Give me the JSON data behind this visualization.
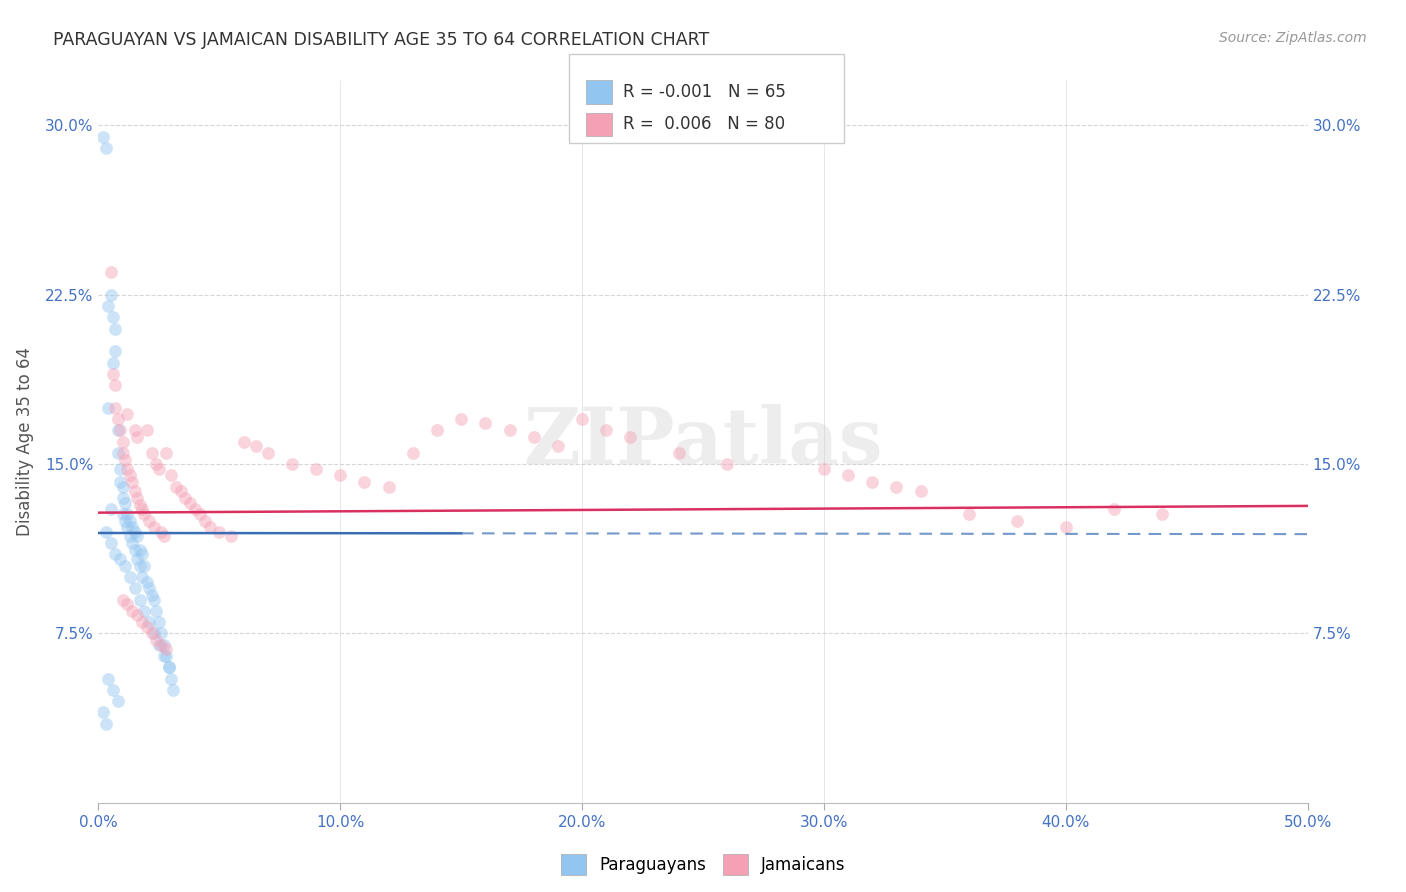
{
  "title": "PARAGUAYAN VS JAMAICAN DISABILITY AGE 35 TO 64 CORRELATION CHART",
  "source": "Source: ZipAtlas.com",
  "xlim": [
    0.0,
    0.5
  ],
  "ylim": [
    0.0,
    0.32
  ],
  "xlabel_ticks": [
    "0.0%",
    "10.0%",
    "20.0%",
    "30.0%",
    "40.0%",
    "50.0%"
  ],
  "xlabel_vals": [
    0.0,
    0.1,
    0.2,
    0.3,
    0.4,
    0.5
  ],
  "ylabel_ticks": [
    "7.5%",
    "15.0%",
    "22.5%",
    "30.0%"
  ],
  "ylabel_vals": [
    0.075,
    0.15,
    0.225,
    0.3
  ],
  "paraguayan_color": "#92C5F0",
  "jamaican_color": "#F4A0B5",
  "trend_paraguayan_color": "#3B6DB5",
  "trend_jamaican_color": "#D93060",
  "legend_r_paraguayan": "R = -0.001",
  "legend_n_paraguayan": "N = 65",
  "legend_r_jamaican": "R =  0.006",
  "legend_n_jamaican": "N = 80",
  "paraguayan_x": [
    0.002,
    0.003,
    0.004,
    0.004,
    0.005,
    0.005,
    0.006,
    0.006,
    0.007,
    0.007,
    0.008,
    0.008,
    0.009,
    0.009,
    0.01,
    0.01,
    0.01,
    0.011,
    0.011,
    0.012,
    0.012,
    0.013,
    0.013,
    0.014,
    0.014,
    0.015,
    0.015,
    0.016,
    0.016,
    0.017,
    0.017,
    0.018,
    0.018,
    0.019,
    0.02,
    0.021,
    0.022,
    0.023,
    0.024,
    0.025,
    0.026,
    0.027,
    0.028,
    0.029,
    0.03,
    0.031,
    0.003,
    0.005,
    0.007,
    0.009,
    0.011,
    0.013,
    0.015,
    0.017,
    0.019,
    0.021,
    0.023,
    0.025,
    0.027,
    0.029,
    0.004,
    0.006,
    0.008,
    0.002,
    0.003
  ],
  "paraguayan_y": [
    0.295,
    0.29,
    0.175,
    0.22,
    0.13,
    0.225,
    0.215,
    0.195,
    0.21,
    0.2,
    0.165,
    0.155,
    0.148,
    0.142,
    0.14,
    0.135,
    0.128,
    0.133,
    0.125,
    0.128,
    0.122,
    0.125,
    0.118,
    0.122,
    0.115,
    0.12,
    0.112,
    0.118,
    0.108,
    0.112,
    0.105,
    0.11,
    0.1,
    0.105,
    0.098,
    0.095,
    0.092,
    0.09,
    0.085,
    0.08,
    0.075,
    0.07,
    0.065,
    0.06,
    0.055,
    0.05,
    0.12,
    0.115,
    0.11,
    0.108,
    0.105,
    0.1,
    0.095,
    0.09,
    0.085,
    0.08,
    0.075,
    0.07,
    0.065,
    0.06,
    0.055,
    0.05,
    0.045,
    0.04,
    0.035
  ],
  "jamaican_x": [
    0.005,
    0.006,
    0.007,
    0.007,
    0.008,
    0.009,
    0.01,
    0.01,
    0.011,
    0.012,
    0.012,
    0.013,
    0.014,
    0.015,
    0.015,
    0.016,
    0.016,
    0.017,
    0.018,
    0.019,
    0.02,
    0.021,
    0.022,
    0.023,
    0.024,
    0.025,
    0.026,
    0.027,
    0.028,
    0.03,
    0.032,
    0.034,
    0.036,
    0.038,
    0.04,
    0.042,
    0.044,
    0.046,
    0.05,
    0.055,
    0.06,
    0.065,
    0.07,
    0.08,
    0.09,
    0.1,
    0.11,
    0.12,
    0.13,
    0.14,
    0.15,
    0.16,
    0.17,
    0.18,
    0.19,
    0.2,
    0.21,
    0.22,
    0.24,
    0.26,
    0.3,
    0.31,
    0.32,
    0.33,
    0.34,
    0.36,
    0.38,
    0.4,
    0.42,
    0.44,
    0.01,
    0.012,
    0.014,
    0.016,
    0.018,
    0.02,
    0.022,
    0.024,
    0.026,
    0.028
  ],
  "jamaican_y": [
    0.235,
    0.19,
    0.185,
    0.175,
    0.17,
    0.165,
    0.16,
    0.155,
    0.152,
    0.148,
    0.172,
    0.145,
    0.142,
    0.165,
    0.138,
    0.162,
    0.135,
    0.132,
    0.13,
    0.128,
    0.165,
    0.125,
    0.155,
    0.122,
    0.15,
    0.148,
    0.12,
    0.118,
    0.155,
    0.145,
    0.14,
    0.138,
    0.135,
    0.133,
    0.13,
    0.128,
    0.125,
    0.122,
    0.12,
    0.118,
    0.16,
    0.158,
    0.155,
    0.15,
    0.148,
    0.145,
    0.142,
    0.14,
    0.155,
    0.165,
    0.17,
    0.168,
    0.165,
    0.162,
    0.158,
    0.17,
    0.165,
    0.162,
    0.155,
    0.15,
    0.148,
    0.145,
    0.142,
    0.14,
    0.138,
    0.128,
    0.125,
    0.122,
    0.13,
    0.128,
    0.09,
    0.088,
    0.085,
    0.083,
    0.08,
    0.078,
    0.075,
    0.072,
    0.07,
    0.068
  ],
  "background_color": "#FFFFFF",
  "grid_color": "#CCCCCC",
  "watermark_text": "ZIPatlas",
  "marker_size": 85,
  "marker_alpha": 0.45,
  "trend_blue_y0": 0.1195,
  "trend_blue_y1": 0.119,
  "trend_blue_solid_end": 0.15,
  "trend_pink_y0": 0.1285,
  "trend_pink_y1": 0.1315
}
